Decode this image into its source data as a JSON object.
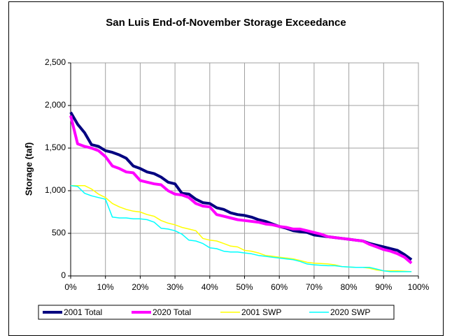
{
  "chart_data": {
    "type": "line",
    "title": "San Luis End-of-November Storage Exceedance",
    "y_label": "Storage (taf)",
    "x": [
      0,
      2,
      4,
      6,
      8,
      10,
      12,
      14,
      16,
      18,
      20,
      22,
      24,
      26,
      28,
      30,
      32,
      34,
      36,
      38,
      40,
      42,
      44,
      46,
      48,
      50,
      52,
      54,
      56,
      58,
      60,
      62,
      64,
      66,
      68,
      70,
      72,
      74,
      76,
      78,
      80,
      82,
      84,
      86,
      88,
      90,
      92,
      94,
      96,
      98
    ],
    "series": [
      {
        "name": "2001 Total",
        "color": "#000080",
        "width": 4,
        "values": [
          1920,
          1780,
          1680,
          1540,
          1520,
          1470,
          1450,
          1420,
          1380,
          1290,
          1260,
          1220,
          1200,
          1160,
          1100,
          1080,
          970,
          960,
          900,
          860,
          850,
          800,
          780,
          740,
          720,
          710,
          690,
          660,
          640,
          610,
          580,
          560,
          530,
          520,
          510,
          480,
          470,
          460,
          450,
          440,
          430,
          420,
          410,
          380,
          360,
          340,
          320,
          300,
          250,
          190
        ]
      },
      {
        "name": "2020 Total",
        "color": "#ff00ff",
        "width": 4,
        "values": [
          1880,
          1550,
          1520,
          1500,
          1470,
          1400,
          1290,
          1260,
          1220,
          1210,
          1120,
          1100,
          1080,
          1070,
          1000,
          960,
          950,
          920,
          850,
          820,
          810,
          720,
          700,
          680,
          660,
          650,
          640,
          630,
          610,
          600,
          580,
          570,
          550,
          550,
          530,
          510,
          490,
          460,
          450,
          440,
          430,
          420,
          410,
          370,
          340,
          310,
          290,
          260,
          220,
          150
        ]
      },
      {
        "name": "2001 SWP",
        "color": "#ffff00",
        "width": 1.5,
        "values": [
          1060,
          1060,
          1060,
          1020,
          960,
          920,
          850,
          810,
          780,
          760,
          750,
          720,
          700,
          650,
          620,
          600,
          570,
          550,
          530,
          440,
          420,
          410,
          380,
          350,
          340,
          300,
          290,
          270,
          240,
          230,
          220,
          210,
          200,
          180,
          160,
          150,
          145,
          140,
          130,
          110,
          105,
          100,
          100,
          90,
          70,
          60,
          60,
          60,
          55,
          50
        ]
      },
      {
        "name": "2020 SWP",
        "color": "#00ffff",
        "width": 1.5,
        "values": [
          1060,
          1050,
          970,
          940,
          920,
          900,
          690,
          680,
          680,
          670,
          670,
          660,
          630,
          560,
          550,
          530,
          490,
          420,
          410,
          380,
          330,
          320,
          290,
          280,
          280,
          270,
          260,
          240,
          230,
          220,
          210,
          200,
          190,
          170,
          140,
          130,
          125,
          120,
          120,
          110,
          105,
          100,
          100,
          100,
          80,
          60,
          50,
          50,
          50,
          50
        ]
      }
    ],
    "xlim": [
      0,
      100
    ],
    "xticks": [
      {
        "value": 0,
        "label": "0%"
      },
      {
        "value": 10,
        "label": "10%"
      },
      {
        "value": 20,
        "label": "20%"
      },
      {
        "value": 30,
        "label": "30%"
      },
      {
        "value": 40,
        "label": "40%"
      },
      {
        "value": 50,
        "label": "50%"
      },
      {
        "value": 60,
        "label": "60%"
      },
      {
        "value": 70,
        "label": "70%"
      },
      {
        "value": 80,
        "label": "80%"
      },
      {
        "value": 90,
        "label": "90%"
      },
      {
        "value": 100,
        "label": "100%"
      }
    ],
    "ylim": [
      0,
      2500
    ],
    "yticks": [
      0,
      500,
      {
        "value": 1000,
        "label": "1,000"
      },
      {
        "value": 1500,
        "label": "1,500"
      },
      {
        "value": 2000,
        "label": "2,000"
      },
      {
        "value": 2500,
        "label": "2,500"
      }
    ],
    "grid": true,
    "legend": "bottom"
  }
}
